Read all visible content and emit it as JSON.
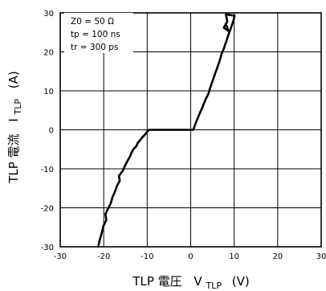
{
  "chart_data": {
    "type": "line",
    "xlabel": {
      "main": "TLP 電圧",
      "symbol": "V",
      "subscript": "TLP",
      "unit": "(V)"
    },
    "ylabel": {
      "main": "TLP 電流",
      "symbol": "I",
      "subscript": "TLP",
      "unit": "(A)"
    },
    "xlim": [
      -30,
      30
    ],
    "ylim": [
      -30,
      30
    ],
    "xticks": [
      -30,
      -20,
      -10,
      0,
      10,
      20,
      30
    ],
    "yticks": [
      -30,
      -20,
      -10,
      0,
      10,
      20,
      30
    ],
    "xtick_labels": [
      "-30",
      "-20",
      "-10",
      "0",
      "10",
      "20",
      "30"
    ],
    "ytick_labels": [
      "-30",
      "-20",
      "-10",
      "0",
      "10",
      "20",
      "30"
    ],
    "grid": true,
    "annotations": [
      "Z0 = 50 Ω",
      "tp = 100 ns",
      "tr = 300 ps"
    ],
    "series": [
      {
        "color": "#000000",
        "x": [
          -21.2,
          -20.9,
          -20.5,
          -20.1,
          -19.4,
          -19.6,
          -18.9,
          -18.3,
          -18.0,
          -17.4,
          -17.0,
          -16.3,
          -16.5,
          -15.6,
          -15.1,
          -14.6,
          -14.0,
          -13.6,
          -13.2,
          -12.5,
          -12.2,
          -11.6,
          -11.1,
          -10.5,
          -10.1,
          -9.6,
          -9.2,
          -8.8,
          -8.5,
          -8.0,
          -2.0,
          0.6,
          0.9,
          1.3,
          1.7,
          2.1,
          2.6,
          3.0,
          3.5,
          4.1,
          4.4,
          4.8,
          5.2,
          5.6,
          6.0,
          6.4,
          6.8,
          7.1,
          7.6,
          8.0,
          8.4,
          8.8,
          9.3,
          9.8,
          10.1,
          8.1,
          8.4,
          7.6,
          8.6,
          8.3
        ],
        "y": [
          -29.6,
          -28.2,
          -26.6,
          -24.8,
          -23.1,
          -21.6,
          -20.0,
          -18.6,
          -17.3,
          -15.8,
          -14.5,
          -13.0,
          -11.8,
          -10.5,
          -9.2,
          -8.1,
          -6.9,
          -5.9,
          -5.0,
          -4.2,
          -3.4,
          -2.6,
          -1.9,
          -1.2,
          -0.6,
          0.0,
          0.0,
          0.0,
          0.0,
          0.0,
          0.0,
          0.0,
          1.0,
          2.1,
          3.2,
          4.3,
          5.5,
          6.7,
          8.0,
          9.3,
          10.5,
          11.8,
          13.1,
          14.4,
          15.6,
          16.9,
          18.2,
          19.5,
          20.8,
          22.1,
          23.4,
          24.8,
          26.3,
          27.9,
          29.3,
          29.6,
          27.8,
          26.2,
          25.4,
          26.6
        ]
      }
    ]
  }
}
